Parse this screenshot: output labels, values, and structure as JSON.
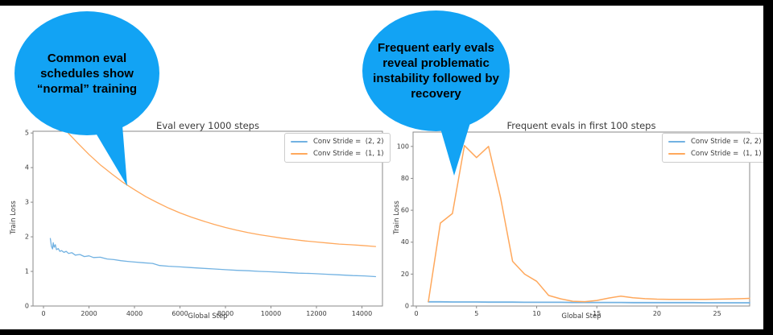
{
  "frame": {
    "background": "#000000",
    "content_background": "#ffffff"
  },
  "bubbles": [
    {
      "text": "Common eval\nschedules show\n“normal” training",
      "fill_color": "#12a3f4",
      "text_color": "#000000"
    },
    {
      "text": "Frequent early evals\nreveal problematic\ninstability followed by\nrecovery",
      "fill_color": "#12a3f4",
      "text_color": "#000000"
    }
  ],
  "chart_data": [
    {
      "type": "line",
      "title": "Eval every 1000 steps",
      "xlabel": "Global Step",
      "ylabel": "Train Loss",
      "xlim": [
        -460,
        14903
      ],
      "ylim": [
        0,
        5.05
      ],
      "xticks": [
        0,
        2000,
        4000,
        6000,
        8000,
        10000,
        12000,
        14000
      ],
      "yticks": [
        0,
        1,
        2,
        3,
        4,
        5
      ],
      "grid": false,
      "legend_position": "upper right",
      "series": [
        {
          "name": "Conv Stride =  (2, 2)",
          "color": "#72b2e2",
          "x": [
            300,
            350,
            400,
            430,
            470,
            520,
            570,
            650,
            720,
            800,
            900,
            1000,
            1100,
            1250,
            1400,
            1600,
            1800,
            2000,
            2200,
            2500,
            2800,
            3100,
            3400,
            3700,
            4000,
            4400,
            4800,
            5100,
            5500,
            6000,
            6500,
            7000,
            7500,
            8000,
            8500,
            9000,
            9500,
            10000,
            10600,
            11200,
            11800,
            12400,
            13000,
            13600,
            14100,
            14600
          ],
          "y": [
            1.95,
            1.72,
            1.65,
            1.83,
            1.7,
            1.77,
            1.63,
            1.66,
            1.58,
            1.6,
            1.55,
            1.58,
            1.52,
            1.54,
            1.47,
            1.49,
            1.43,
            1.45,
            1.4,
            1.41,
            1.36,
            1.34,
            1.31,
            1.29,
            1.27,
            1.25,
            1.23,
            1.17,
            1.15,
            1.13,
            1.11,
            1.09,
            1.07,
            1.05,
            1.03,
            1.02,
            1.0,
            0.99,
            0.97,
            0.95,
            0.94,
            0.92,
            0.9,
            0.88,
            0.87,
            0.85
          ]
        },
        {
          "name": "Conv Stride =  (1, 1)",
          "color": "#ffa85c",
          "x": [
            1080,
            1500,
            2000,
            2500,
            3000,
            3500,
            4000,
            4500,
            5000,
            5500,
            6000,
            6500,
            7000,
            7500,
            8000,
            8500,
            9000,
            9500,
            10000,
            10500,
            11000,
            11500,
            12000,
            12500,
            13000,
            13500,
            14000,
            14600
          ],
          "y": [
            5.0,
            4.71,
            4.38,
            4.08,
            3.82,
            3.57,
            3.36,
            3.16,
            2.99,
            2.83,
            2.69,
            2.57,
            2.46,
            2.36,
            2.27,
            2.19,
            2.12,
            2.06,
            2.01,
            1.96,
            1.92,
            1.88,
            1.85,
            1.82,
            1.79,
            1.77,
            1.75,
            1.72
          ]
        }
      ]
    },
    {
      "type": "line",
      "title": "Frequent evals in first 100 steps",
      "xlabel": "Global Step",
      "ylabel": "Train Loss",
      "xlim": [
        -0.27,
        27.7
      ],
      "ylim": [
        0,
        109
      ],
      "xticks": [
        0,
        5,
        10,
        15,
        20,
        25
      ],
      "yticks": [
        0,
        20,
        40,
        60,
        80,
        100
      ],
      "grid": false,
      "legend_position": "upper right",
      "series": [
        {
          "name": "Conv Stride =  (2, 2)",
          "color": "#72b2e2",
          "x": [
            1,
            2,
            3,
            4,
            5,
            6,
            7,
            8,
            9,
            10,
            11,
            12,
            13,
            14,
            15,
            16,
            17,
            18,
            19,
            20,
            21,
            22,
            23,
            24,
            25,
            26,
            27,
            27.7
          ],
          "y": [
            2.6,
            2.6,
            2.5,
            2.5,
            2.5,
            2.4,
            2.4,
            2.4,
            2.3,
            2.3,
            2.3,
            2.3,
            2.2,
            2.2,
            2.2,
            2.2,
            2.2,
            2.1,
            2.1,
            2.1,
            2.1,
            2.1,
            2.1,
            2.0,
            2.0,
            2.0,
            2.0,
            2.0
          ]
        },
        {
          "name": "Conv Stride =  (1, 1)",
          "color": "#ffa85c",
          "x": [
            1,
            2,
            3,
            4,
            5,
            6,
            7,
            8,
            9,
            10,
            11,
            12,
            13,
            14,
            15,
            16,
            17,
            18,
            19,
            20,
            21,
            22,
            23,
            24,
            25,
            26,
            27,
            27.7
          ],
          "y": [
            2.8,
            52,
            58,
            100.5,
            93,
            100,
            68,
            28,
            20,
            15.5,
            6.6,
            4.5,
            3.0,
            2.7,
            3.5,
            5.0,
            6.2,
            5.2,
            4.6,
            4.3,
            4.2,
            4.2,
            4.2,
            4.2,
            4.3,
            4.4,
            4.6,
            4.8
          ]
        }
      ]
    }
  ]
}
